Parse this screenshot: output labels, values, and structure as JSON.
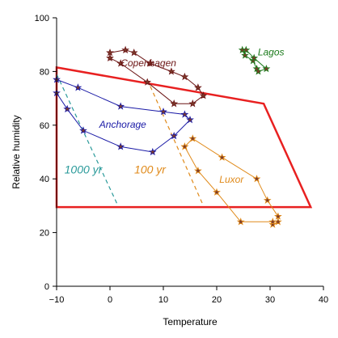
{
  "chart_data": {
    "type": "line",
    "title": "",
    "xlabel": "Temperature",
    "ylabel": "Relative humidity",
    "xlim": [
      -10,
      40
    ],
    "ylim": [
      0,
      100
    ],
    "xticks": [
      -10,
      0,
      10,
      20,
      30,
      40
    ],
    "yticks": [
      0,
      20,
      40,
      60,
      80,
      100
    ],
    "grid": false,
    "legend": "none",
    "series": [
      {
        "name": "Copenhagen",
        "color": "#6b1414",
        "label_at": [
          2,
          82
        ],
        "values": [
          {
            "x": 0,
            "y": 87
          },
          {
            "x": 2.9,
            "y": 88
          },
          {
            "x": 4.5,
            "y": 87
          },
          {
            "x": 7.5,
            "y": 83
          },
          {
            "x": 11.5,
            "y": 80
          },
          {
            "x": 14,
            "y": 78
          },
          {
            "x": 16.5,
            "y": 74
          },
          {
            "x": 17.5,
            "y": 71
          },
          {
            "x": 15.5,
            "y": 68
          },
          {
            "x": 12,
            "y": 68
          },
          {
            "x": 7,
            "y": 76
          },
          {
            "x": 2,
            "y": 83
          },
          {
            "x": 0,
            "y": 85
          }
        ]
      },
      {
        "name": "Anchorage",
        "color": "#1a1aa6",
        "label_at": [
          -2,
          59
        ],
        "values": [
          {
            "x": -10,
            "y": 77
          },
          {
            "x": -6,
            "y": 74
          },
          {
            "x": 2,
            "y": 67
          },
          {
            "x": 10,
            "y": 65
          },
          {
            "x": 14,
            "y": 64
          },
          {
            "x": 15,
            "y": 62
          },
          {
            "x": 12,
            "y": 56
          },
          {
            "x": 8,
            "y": 50
          },
          {
            "x": 2,
            "y": 52
          },
          {
            "x": -5,
            "y": 58
          },
          {
            "x": -8,
            "y": 66
          },
          {
            "x": -10,
            "y": 72
          }
        ]
      },
      {
        "name": "Luxor",
        "color": "#e08a1a",
        "label_at": [
          20.5,
          38.5
        ],
        "values": [
          {
            "x": 14,
            "y": 52
          },
          {
            "x": 15.5,
            "y": 55
          },
          {
            "x": 21,
            "y": 48
          },
          {
            "x": 27.5,
            "y": 40
          },
          {
            "x": 29.5,
            "y": 32
          },
          {
            "x": 31.5,
            "y": 26
          },
          {
            "x": 31.5,
            "y": 24
          },
          {
            "x": 30.5,
            "y": 23
          },
          {
            "x": 30.5,
            "y": 24
          },
          {
            "x": 24.5,
            "y": 24
          },
          {
            "x": 20,
            "y": 35
          },
          {
            "x": 16.5,
            "y": 43
          },
          {
            "x": 14,
            "y": 52
          }
        ]
      },
      {
        "name": "Lagos",
        "color": "#1a7a1a",
        "label_at": [
          27.7,
          86
        ],
        "values": [
          {
            "x": 24.8,
            "y": 88
          },
          {
            "x": 25.3,
            "y": 86
          },
          {
            "x": 26.8,
            "y": 84
          },
          {
            "x": 27.5,
            "y": 81
          },
          {
            "x": 27.8,
            "y": 80
          },
          {
            "x": 29.3,
            "y": 81
          },
          {
            "x": 27,
            "y": 85
          },
          {
            "x": 25.5,
            "y": 88
          }
        ]
      }
    ],
    "reference_lines": [
      {
        "label": "1000 yr",
        "color": "#2a9a9a",
        "style": "dashed",
        "label_at": [
          -5,
          42
        ],
        "values": [
          {
            "x": -10,
            "y": 79
          },
          {
            "x": 1.5,
            "y": 30
          }
        ]
      },
      {
        "label": "100 yr",
        "color": "#e08a1a",
        "style": "dashed",
        "label_at": [
          7.5,
          42
        ],
        "values": [
          {
            "x": 7,
            "y": 77
          },
          {
            "x": 17.5,
            "y": 30
          }
        ]
      }
    ],
    "region": {
      "color": "#e82020",
      "values": [
        {
          "x": -10,
          "y": 81.5
        },
        {
          "x": 28.8,
          "y": 68
        },
        {
          "x": 37.6,
          "y": 29.5
        },
        {
          "x": -10,
          "y": 29.5
        }
      ]
    }
  }
}
